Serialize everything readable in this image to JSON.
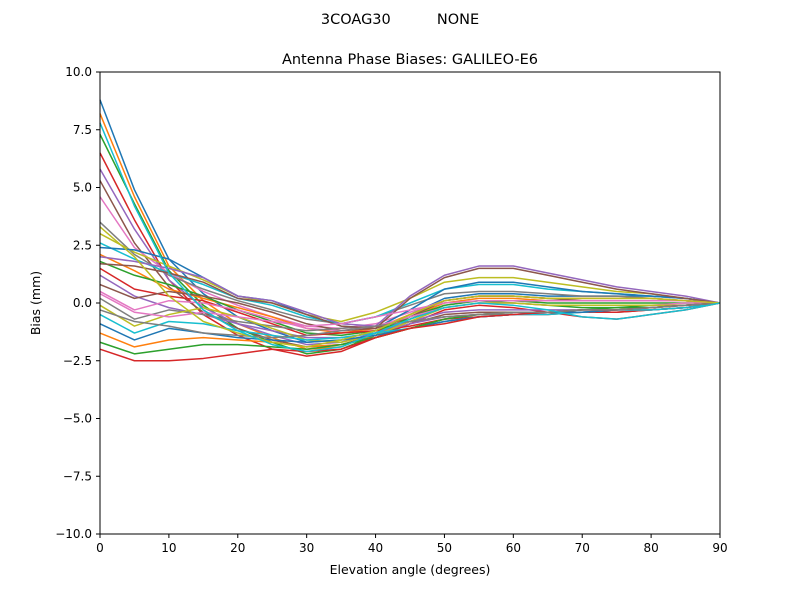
{
  "chart_data": {
    "type": "line",
    "suptitle": "3COAG30          NONE",
    "title": "Antenna Phase Biases: GALILEO-E6",
    "xlabel": "Elevation angle (degrees)",
    "ylabel": "Bias (mm)",
    "xlim": [
      0,
      90
    ],
    "ylim": [
      -10,
      10
    ],
    "x_ticks": [
      "0",
      "10",
      "20",
      "30",
      "40",
      "50",
      "60",
      "70",
      "80",
      "90"
    ],
    "y_ticks": [
      "10.0",
      "7.5",
      "5.0",
      "2.5",
      "0.0",
      "−2.5",
      "−5.0",
      "−7.5",
      "−10.0"
    ],
    "grid": false,
    "legend": "none",
    "palette": [
      "#1f77b4",
      "#ff7f0e",
      "#2ca02c",
      "#d62728",
      "#9467bd",
      "#8c564b",
      "#e377c2",
      "#7f7f7f",
      "#bcbd22",
      "#17becf"
    ],
    "x": [
      0,
      5,
      10,
      15,
      20,
      25,
      30,
      35,
      40,
      45,
      50,
      55,
      60,
      65,
      70,
      75,
      80,
      85,
      90
    ],
    "series": [
      {
        "values": [
          8.8,
          4.9,
          1.9,
          0.4,
          -0.6,
          -1.2,
          -1.7,
          -1.6,
          -1.2,
          -0.5,
          0.2,
          0.4,
          0.4,
          0.3,
          0.3,
          0.3,
          0.3,
          0.2,
          0.0
        ]
      },
      {
        "values": [
          8.2,
          4.6,
          1.6,
          0.1,
          -0.9,
          -1.5,
          -2.0,
          -1.9,
          -1.3,
          -0.6,
          0.0,
          0.2,
          0.2,
          0.1,
          0.1,
          0.1,
          0.1,
          0.1,
          0.0
        ]
      },
      {
        "values": [
          7.3,
          4.3,
          1.4,
          -0.1,
          -1.1,
          -1.7,
          -2.2,
          -2.0,
          -1.4,
          -0.6,
          -0.1,
          0.1,
          0.0,
          -0.1,
          -0.2,
          -0.2,
          -0.1,
          -0.1,
          0.0
        ]
      },
      {
        "values": [
          6.5,
          3.6,
          1.0,
          -0.5,
          -1.4,
          -2.0,
          -2.3,
          -2.1,
          -1.5,
          -0.9,
          -0.3,
          -0.1,
          -0.2,
          -0.4,
          -0.6,
          -0.7,
          -0.5,
          -0.3,
          0.0
        ]
      },
      {
        "values": [
          5.8,
          3.2,
          1.0,
          -0.2,
          -0.9,
          -1.4,
          -1.8,
          -1.7,
          -1.3,
          -0.8,
          -0.4,
          -0.3,
          -0.3,
          -0.3,
          -0.3,
          -0.3,
          -0.3,
          -0.2,
          0.0
        ]
      },
      {
        "values": [
          5.3,
          2.6,
          0.7,
          -0.4,
          -1.1,
          -1.6,
          -1.9,
          -1.8,
          -1.4,
          -0.9,
          -0.5,
          -0.4,
          -0.4,
          -0.4,
          -0.4,
          -0.4,
          -0.3,
          -0.2,
          0.0
        ]
      },
      {
        "values": [
          4.6,
          2.4,
          1.3,
          0.5,
          -0.1,
          -0.6,
          -1.0,
          -1.1,
          -0.9,
          -0.4,
          0.1,
          0.3,
          0.3,
          0.2,
          0.2,
          0.2,
          0.2,
          0.1,
          0.0
        ]
      },
      {
        "values": [
          3.5,
          2.1,
          1.2,
          0.6,
          0.1,
          -0.3,
          -0.7,
          -0.9,
          -0.6,
          -0.1,
          0.4,
          0.5,
          0.5,
          0.4,
          0.3,
          0.3,
          0.2,
          0.1,
          0.0
        ]
      },
      {
        "values": [
          3.0,
          2.2,
          1.6,
          1.0,
          0.3,
          0.0,
          -0.5,
          -0.8,
          -0.4,
          0.2,
          0.9,
          1.1,
          1.1,
          0.9,
          0.7,
          0.5,
          0.4,
          0.2,
          0.0
        ]
      },
      {
        "values": [
          2.6,
          1.9,
          1.3,
          0.8,
          0.2,
          -0.1,
          -0.6,
          -0.9,
          -0.6,
          0.0,
          0.6,
          0.8,
          0.8,
          0.6,
          0.5,
          0.4,
          0.3,
          0.2,
          0.0
        ]
      },
      {
        "values": [
          2.4,
          2.3,
          1.9,
          1.1,
          0.3,
          0.1,
          -0.5,
          -1.0,
          -1.1,
          -0.3,
          0.6,
          0.9,
          0.9,
          0.7,
          0.5,
          0.4,
          0.3,
          0.2,
          0.0
        ]
      },
      {
        "values": [
          2.1,
          1.4,
          0.6,
          0.2,
          -0.2,
          -0.6,
          -1.1,
          -1.3,
          -1.1,
          -0.5,
          0.1,
          0.3,
          0.3,
          0.2,
          0.2,
          0.2,
          0.2,
          0.1,
          0.0
        ]
      },
      {
        "values": [
          1.8,
          1.2,
          0.8,
          0.3,
          -0.3,
          -0.8,
          -1.3,
          -1.4,
          -1.2,
          -0.7,
          -0.1,
          0.1,
          0.1,
          0.0,
          0.0,
          0.0,
          0.0,
          0.0,
          0.0
        ]
      },
      {
        "values": [
          1.5,
          0.6,
          0.3,
          0.1,
          -0.4,
          -0.9,
          -1.4,
          -1.3,
          -1.2,
          -1.0,
          -0.7,
          -0.6,
          -0.5,
          -0.5,
          -0.4,
          -0.4,
          -0.3,
          -0.2,
          0.0
        ]
      },
      {
        "values": [
          1.2,
          0.3,
          -0.2,
          -0.5,
          -0.9,
          -1.2,
          -1.5,
          -1.5,
          -1.3,
          -0.9,
          -0.6,
          -0.5,
          -0.4,
          -0.4,
          -0.4,
          -0.3,
          -0.3,
          -0.2,
          0.0
        ]
      },
      {
        "values": [
          0.8,
          0.2,
          0.5,
          0.3,
          0.0,
          -0.4,
          -0.9,
          -1.2,
          -1.1,
          -0.6,
          0.1,
          0.3,
          0.3,
          0.2,
          0.1,
          0.1,
          0.1,
          0.1,
          0.0
        ]
      },
      {
        "values": [
          0.5,
          -0.3,
          0.1,
          0.0,
          -0.3,
          -0.7,
          -1.1,
          -1.2,
          -1.0,
          -0.6,
          -0.2,
          0.0,
          0.0,
          -0.1,
          -0.1,
          -0.1,
          -0.1,
          0.0,
          0.0
        ]
      },
      {
        "values": [
          0.2,
          -0.7,
          -0.3,
          -0.5,
          -0.8,
          -1.0,
          -1.2,
          -1.1,
          -1.0,
          -0.8,
          -0.6,
          -0.5,
          -0.5,
          -0.4,
          -0.4,
          -0.3,
          -0.3,
          -0.2,
          0.0
        ]
      },
      {
        "values": [
          -0.1,
          -1.0,
          -0.5,
          -0.2,
          -0.6,
          -1.1,
          -1.6,
          -1.7,
          -1.4,
          -0.8,
          -0.2,
          0.0,
          0.0,
          -0.1,
          -0.1,
          -0.1,
          -0.1,
          -0.1,
          0.0
        ]
      },
      {
        "values": [
          -0.5,
          -1.3,
          -0.8,
          -0.9,
          -1.2,
          -1.4,
          -1.6,
          -1.5,
          -1.3,
          -1.1,
          -0.8,
          -0.6,
          -0.5,
          -0.5,
          -0.4,
          -0.3,
          -0.3,
          -0.2,
          0.0
        ]
      },
      {
        "values": [
          -0.9,
          -1.6,
          -1.1,
          -1.3,
          -1.5,
          -1.6,
          -1.7,
          -1.6,
          -1.4,
          -1.1,
          -0.8,
          -0.6,
          -0.5,
          -0.4,
          -0.4,
          -0.3,
          -0.2,
          -0.1,
          0.0
        ]
      },
      {
        "values": [
          -1.3,
          -1.9,
          -1.6,
          -1.5,
          -1.6,
          -1.7,
          -1.9,
          -1.8,
          -1.5,
          -1.1,
          -0.7,
          -0.5,
          -0.4,
          -0.4,
          -0.3,
          -0.3,
          -0.2,
          -0.1,
          0.0
        ]
      },
      {
        "values": [
          -1.7,
          -2.2,
          -2.0,
          -1.8,
          -1.8,
          -1.9,
          -2.0,
          -1.8,
          -1.5,
          -1.1,
          -0.7,
          -0.5,
          -0.4,
          -0.4,
          -0.3,
          -0.2,
          -0.2,
          -0.1,
          0.0
        ]
      },
      {
        "values": [
          -2.0,
          -2.5,
          -2.5,
          -2.4,
          -2.2,
          -2.0,
          -2.1,
          -2.0,
          -1.5,
          -1.1,
          -0.9,
          -0.6,
          -0.5,
          -0.4,
          -0.3,
          -0.3,
          -0.2,
          -0.1,
          0.0
        ]
      },
      {
        "values": [
          2.0,
          1.8,
          1.5,
          1.1,
          0.3,
          0.1,
          -0.4,
          -0.9,
          -1.0,
          0.3,
          1.2,
          1.6,
          1.6,
          1.3,
          1.0,
          0.7,
          0.5,
          0.3,
          0.0
        ]
      },
      {
        "values": [
          1.7,
          1.6,
          1.3,
          0.9,
          0.2,
          0.0,
          -0.5,
          -1.0,
          -1.1,
          0.2,
          1.1,
          1.5,
          1.5,
          1.2,
          0.9,
          0.6,
          0.4,
          0.2,
          0.0
        ]
      },
      {
        "values": [
          0.4,
          -0.4,
          -0.6,
          -0.4,
          -0.6,
          -0.8,
          -1.0,
          -0.9,
          -0.6,
          -0.3,
          0.0,
          0.1,
          0.1,
          0.1,
          0.1,
          0.1,
          0.1,
          0.1,
          0.0
        ]
      },
      {
        "values": [
          -0.3,
          -0.8,
          -1.0,
          -1.3,
          -1.4,
          -1.5,
          -1.4,
          -1.2,
          -1.0,
          -0.8,
          -0.6,
          -0.5,
          -0.4,
          -0.4,
          -0.3,
          -0.3,
          -0.2,
          -0.1,
          0.0
        ]
      },
      {
        "values": [
          3.3,
          2.0,
          0.3,
          -0.8,
          -1.3,
          -1.7,
          -1.9,
          -1.6,
          -1.2,
          -0.5,
          0.1,
          0.3,
          0.3,
          0.2,
          0.2,
          0.2,
          0.2,
          0.1,
          0.0
        ]
      },
      {
        "values": [
          7.8,
          4.2,
          1.3,
          -0.3,
          -1.2,
          -1.8,
          -2.1,
          -1.9,
          -1.3,
          -0.7,
          -0.2,
          0.0,
          -0.1,
          -0.3,
          -0.6,
          -0.7,
          -0.5,
          -0.3,
          0.0
        ]
      }
    ]
  }
}
